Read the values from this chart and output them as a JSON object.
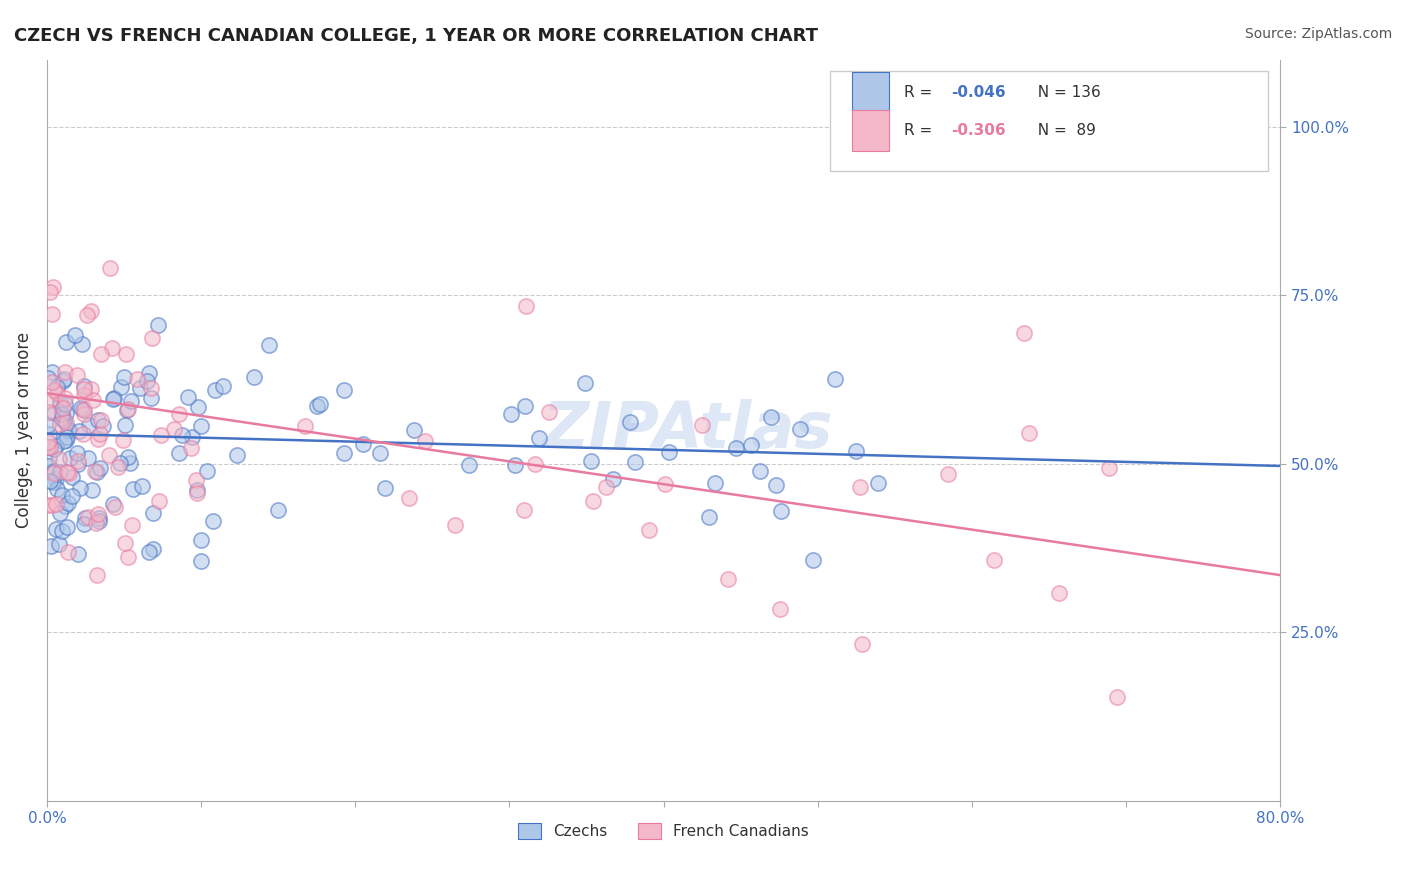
{
  "title": "CZECH VS FRENCH CANADIAN COLLEGE, 1 YEAR OR MORE CORRELATION CHART",
  "source_text": "Source: ZipAtlas.com",
  "ylabel": "College, 1 year or more",
  "xlim": [
    0.0,
    0.8
  ],
  "ylim": [
    0.0,
    1.1
  ],
  "xticks": [
    0.0,
    0.1,
    0.2,
    0.3,
    0.4,
    0.5,
    0.6,
    0.7,
    0.8
  ],
  "xticklabels": [
    "0.0%",
    "",
    "",
    "",
    "",
    "",
    "",
    "",
    "80.0%"
  ],
  "yticks_right": [
    0.25,
    0.5,
    0.75,
    1.0
  ],
  "yticklabels_right": [
    "25.0%",
    "50.0%",
    "75.0%",
    "100.0%"
  ],
  "scatter_czechs_color": "#aec6e8",
  "scatter_french_color": "#f4b8c8",
  "line_czechs_color": "#4472c4",
  "line_french_color": "#e8799f",
  "watermark_color": "#c8d8f0",
  "background_color": "#ffffff",
  "grid_color": "#cccccc",
  "czechs_N": 136,
  "french_N": 89,
  "czechs_line_x": [
    0.0,
    0.8
  ],
  "czechs_line_y": [
    0.545,
    0.497
  ],
  "french_line_x": [
    0.0,
    0.8
  ],
  "french_line_y": [
    0.605,
    0.335
  ],
  "legend_r_czech": "R = -0.046",
  "legend_n_czech": "N = 136",
  "legend_r_french": "R = -0.306",
  "legend_n_french": "N =  89",
  "bottom_label_czech": "Czechs",
  "bottom_label_french": "French Canadians"
}
